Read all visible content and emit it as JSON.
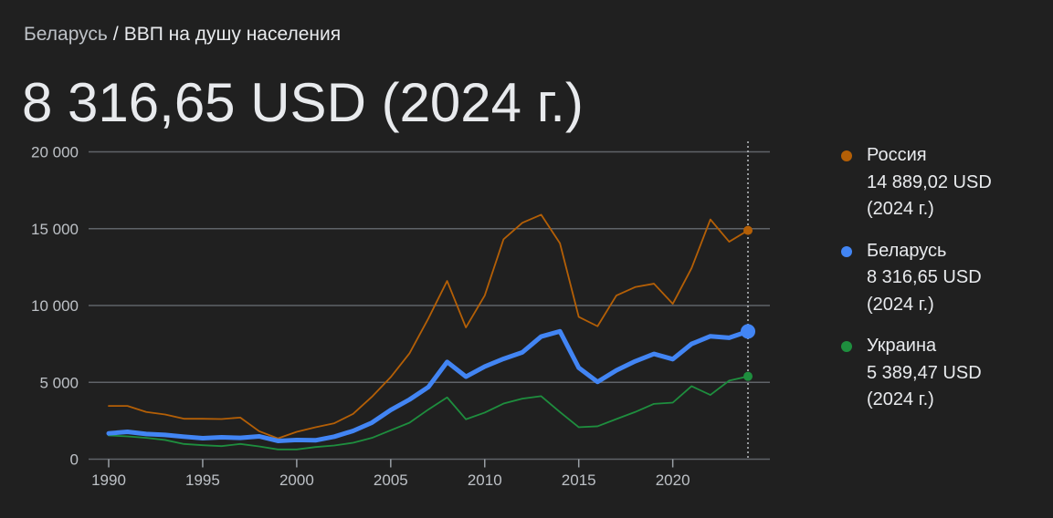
{
  "breadcrumb": {
    "parent": "Беларусь",
    "separator": "/",
    "current": "ВВП на душу населения"
  },
  "headline": "8 316,65 USD (2024 г.)",
  "chart_data": {
    "type": "line",
    "title": "",
    "xlabel": "",
    "ylabel": "",
    "xlim": [
      1990,
      2024
    ],
    "ylim": [
      0,
      20000
    ],
    "x_ticks": [
      1990,
      1995,
      2000,
      2005,
      2010,
      2015,
      2020
    ],
    "x_tick_labels": [
      "1990",
      "1995",
      "2000",
      "2005",
      "2010",
      "2015",
      "2020"
    ],
    "y_ticks": [
      0,
      5000,
      10000,
      15000,
      20000
    ],
    "y_tick_labels": [
      "0",
      "5 000",
      "10 000",
      "15 000",
      "20 000"
    ],
    "grid": "horizontal",
    "legend_placement": "right",
    "highlight_year": 2024,
    "x": [
      1990,
      1991,
      1992,
      1993,
      1994,
      1995,
      1996,
      1997,
      1998,
      1999,
      2000,
      2001,
      2002,
      2003,
      2004,
      2005,
      2006,
      2007,
      2008,
      2009,
      2010,
      2011,
      2012,
      2013,
      2014,
      2015,
      2016,
      2017,
      2018,
      2019,
      2020,
      2021,
      2022,
      2023,
      2024
    ],
    "series": [
      {
        "name": "Россия",
        "color": "#b45f06",
        "emphasized": false,
        "label_value": "14 889,02 USD",
        "label_year": "(2024 г.)",
        "values": [
          3465,
          3465,
          3070,
          2910,
          2630,
          2630,
          2610,
          2710,
          1820,
          1350,
          1780,
          2080,
          2340,
          2950,
          4060,
          5340,
          6890,
          9150,
          11600,
          8570,
          10650,
          14310,
          15380,
          15910,
          14050,
          9260,
          8650,
          10650,
          11200,
          11420,
          10110,
          12430,
          15600,
          14150,
          14889.02
        ]
      },
      {
        "name": "Беларусь",
        "color": "#4285f4",
        "emphasized": true,
        "label_value": "8 316,65 USD",
        "label_year": "(2024 г.)",
        "values": [
          1680,
          1780,
          1640,
          1580,
          1465,
          1365,
          1425,
          1385,
          1485,
          1190,
          1250,
          1230,
          1465,
          1840,
          2375,
          3200,
          3880,
          4690,
          6330,
          5370,
          6030,
          6530,
          6950,
          7980,
          8320,
          5950,
          5030,
          5780,
          6370,
          6850,
          6510,
          7500,
          8000,
          7900,
          8316.65
        ]
      },
      {
        "name": "Украина",
        "color": "#1e8e3e",
        "emphasized": false,
        "label_value": "5 389,47 USD",
        "label_year": "(2024 г.)",
        "values": [
          1545,
          1485,
          1385,
          1250,
          990,
          910,
          850,
          990,
          830,
          635,
          635,
          790,
          890,
          1070,
          1385,
          1880,
          2375,
          3230,
          4020,
          2595,
          3030,
          3620,
          3940,
          4100,
          3070,
          2080,
          2140,
          2610,
          3070,
          3600,
          3680,
          4750,
          4180,
          5110,
          5389.47
        ]
      }
    ]
  }
}
